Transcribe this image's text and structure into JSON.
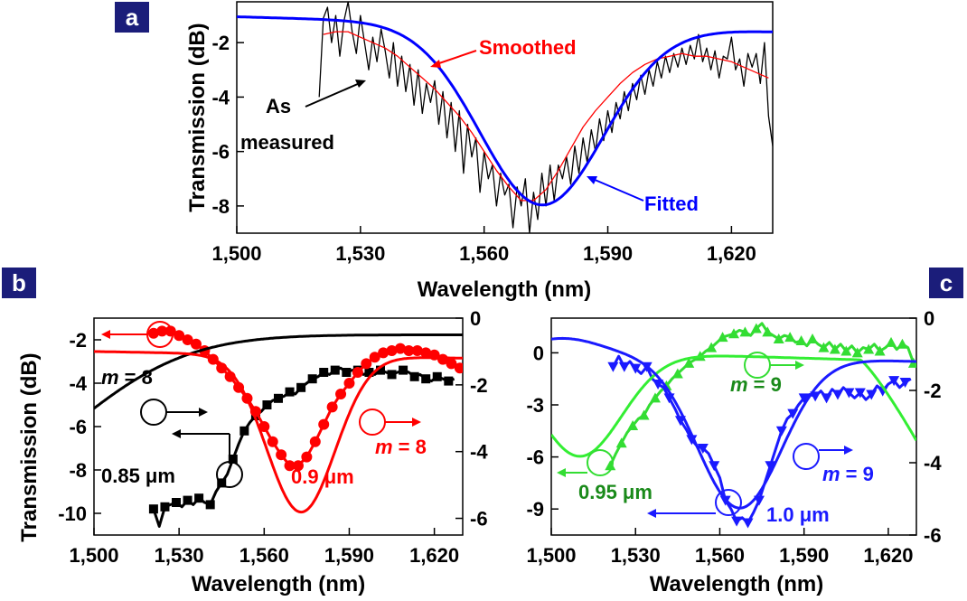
{
  "chart_data": [
    {
      "panel": "a",
      "type": "line",
      "xlabel": "Wavelength (nm)",
      "ylabel": "Transmission (dB)",
      "xlim": [
        1500,
        1630
      ],
      "ylim": [
        -9,
        -0.5
      ],
      "xticks": [
        "1,500",
        "1,530",
        "1,560",
        "1,590",
        "1,620"
      ],
      "yticks": [
        "-2",
        "-4",
        "-6",
        "-8"
      ],
      "annotations": [
        "Smoothed",
        "As measured",
        "Fitted"
      ],
      "series": [
        {
          "name": "As measured",
          "color": "#000000",
          "x": [
            1520,
            1521,
            1522,
            1523,
            1524,
            1525,
            1526,
            1527,
            1528,
            1529,
            1530,
            1531,
            1532,
            1533,
            1534,
            1535,
            1536,
            1537,
            1538,
            1539,
            1540,
            1541,
            1542,
            1543,
            1544,
            1545,
            1546,
            1547,
            1548,
            1549,
            1550,
            1551,
            1552,
            1553,
            1554,
            1555,
            1556,
            1557,
            1558,
            1559,
            1560,
            1561,
            1562,
            1563,
            1564,
            1565,
            1566,
            1567,
            1568,
            1569,
            1570,
            1571,
            1572,
            1573,
            1574,
            1575,
            1576,
            1577,
            1578,
            1579,
            1580,
            1581,
            1582,
            1583,
            1584,
            1585,
            1586,
            1587,
            1588,
            1589,
            1590,
            1591,
            1592,
            1593,
            1594,
            1595,
            1596,
            1597,
            1598,
            1599,
            1600,
            1601,
            1602,
            1603,
            1604,
            1605,
            1606,
            1607,
            1608,
            1609,
            1610,
            1611,
            1612,
            1613,
            1614,
            1615,
            1616,
            1617,
            1618,
            1619,
            1620,
            1621,
            1622,
            1623,
            1624,
            1625,
            1626,
            1627,
            1628,
            1629,
            1630
          ],
          "y": [
            -4.0,
            -1.1,
            -0.7,
            -2.0,
            -1.0,
            -2.5,
            -1.2,
            -0.5,
            -1.6,
            -2.4,
            -1.0,
            -2.0,
            -3.0,
            -1.8,
            -2.7,
            -1.5,
            -2.3,
            -3.3,
            -2.0,
            -3.6,
            -2.5,
            -3.8,
            -2.8,
            -4.3,
            -3.0,
            -4.6,
            -3.5,
            -4.2,
            -3.4,
            -5.0,
            -3.8,
            -5.5,
            -4.2,
            -6.0,
            -4.5,
            -6.8,
            -5.0,
            -6.2,
            -5.5,
            -7.5,
            -6.0,
            -7.0,
            -6.5,
            -8.0,
            -6.8,
            -7.6,
            -7.2,
            -8.8,
            -7.3,
            -8.0,
            -7.0,
            -9.0,
            -7.5,
            -8.5,
            -6.8,
            -8.0,
            -6.5,
            -7.8,
            -6.5,
            -7.0,
            -6.2,
            -7.2,
            -5.8,
            -6.8,
            -5.5,
            -6.4,
            -5.2,
            -6.0,
            -4.8,
            -5.6,
            -4.5,
            -5.3,
            -4.2,
            -4.8,
            -3.8,
            -4.5,
            -3.5,
            -4.1,
            -3.2,
            -3.9,
            -3.0,
            -3.6,
            -2.7,
            -3.3,
            -2.5,
            -3.1,
            -2.4,
            -2.9,
            -2.2,
            -2.8,
            -2.1,
            -2.6,
            -1.7,
            -2.7,
            -2.2,
            -3.0,
            -2.3,
            -3.3,
            -2.5,
            -2.6,
            -1.8,
            -3.0,
            -2.6,
            -3.6,
            -2.4,
            -2.9,
            -2.4,
            -3.5,
            -2.0,
            -4.7,
            -5.8
          ]
        },
        {
          "name": "Smoothed",
          "color": "#ff0000",
          "x": [
            1521,
            1524,
            1527,
            1530,
            1533,
            1536,
            1539,
            1542,
            1545,
            1548,
            1551,
            1554,
            1557,
            1560,
            1563,
            1566,
            1569,
            1572,
            1575,
            1578,
            1581,
            1584,
            1587,
            1590,
            1593,
            1596,
            1599,
            1602,
            1605,
            1608,
            1611,
            1614,
            1617,
            1620,
            1623,
            1626,
            1629
          ],
          "y": [
            -1.7,
            -1.6,
            -1.6,
            -1.8,
            -2.0,
            -2.2,
            -2.5,
            -2.9,
            -3.3,
            -3.7,
            -4.2,
            -4.7,
            -5.3,
            -6.0,
            -6.7,
            -7.3,
            -7.8,
            -7.8,
            -7.4,
            -6.7,
            -5.9,
            -5.1,
            -4.5,
            -4.0,
            -3.5,
            -3.1,
            -2.8,
            -2.6,
            -2.5,
            -2.4,
            -2.5,
            -2.5,
            -2.6,
            -2.7,
            -2.9,
            -3.1,
            -3.3
          ]
        },
        {
          "name": "Fitted",
          "color": "#0000ff",
          "func": {
            "baseline": -1.05,
            "depth": 6.6,
            "center": 1574,
            "width": 15,
            "tail": -0.55
          }
        }
      ]
    },
    {
      "panel": "b",
      "type": "line",
      "xlabel": "Wavelength (nm)",
      "ylabel": "Transmission (dB)",
      "xlim": [
        1500,
        1630
      ],
      "ylim": [
        -11,
        -1
      ],
      "y2lim": [
        -6.5,
        0
      ],
      "xticks": [
        "1,500",
        "1,530",
        "1,560",
        "1,590",
        "1,620"
      ],
      "yticks": [
        "-2",
        "-4",
        "-6",
        "-8",
        "-10"
      ],
      "y2ticks": [
        "0",
        "-2",
        "-4",
        "-6"
      ],
      "annotations": {
        "m_black": "m = 8",
        "m_red": "m = 8",
        "width_black": "0.85 μm",
        "width_red": "0.9 μm"
      },
      "series": [
        {
          "name": "0.85 μm measured",
          "color": "#000000",
          "marker": "square",
          "x": [
            1521,
            1523,
            1525,
            1527,
            1529,
            1531,
            1533,
            1535,
            1537,
            1539,
            1541,
            1543,
            1545,
            1547,
            1549,
            1551,
            1553,
            1555,
            1557,
            1559,
            1561,
            1563,
            1565,
            1567,
            1569,
            1571,
            1573,
            1575,
            1577,
            1579,
            1581,
            1583,
            1585,
            1587,
            1589,
            1591,
            1593,
            1595,
            1597,
            1599,
            1601,
            1603,
            1605,
            1607,
            1609,
            1611,
            1613,
            1615,
            1617,
            1619,
            1621,
            1623,
            1625,
            1627
          ],
          "y": [
            -9.8,
            -10.6,
            -9.7,
            -9.6,
            -9.5,
            -9.7,
            -9.4,
            -9.6,
            -9.3,
            -9.5,
            -9.6,
            -9.0,
            -8.6,
            -8.2,
            -7.5,
            -6.8,
            -6.2,
            -5.8,
            -5.5,
            -5.3,
            -5.0,
            -4.8,
            -4.7,
            -4.6,
            -4.4,
            -4.5,
            -4.2,
            -4.0,
            -3.8,
            -3.7,
            -3.5,
            -3.6,
            -3.4,
            -3.3,
            -3.5,
            -3.4,
            -3.4,
            -3.6,
            -3.5,
            -3.6,
            -3.4,
            -3.5,
            -3.6,
            -3.5,
            -3.4,
            -3.5,
            -3.7,
            -3.6,
            -3.8,
            -3.9,
            -3.7,
            -3.8,
            -3.9,
            -3.8
          ],
          "markers_every": 2
        },
        {
          "name": "0.9 μm measured",
          "color": "#ff0000",
          "marker": "circle",
          "x": [
            1521,
            1524,
            1527,
            1530,
            1533,
            1536,
            1539,
            1542,
            1545,
            1548,
            1551,
            1554,
            1557,
            1560,
            1563,
            1566,
            1569,
            1572,
            1575,
            1578,
            1581,
            1584,
            1587,
            1590,
            1593,
            1596,
            1599,
            1602,
            1605,
            1608,
            1611,
            1614,
            1617,
            1620,
            1623,
            1626,
            1629
          ],
          "y": [
            -1.7,
            -1.6,
            -1.6,
            -1.8,
            -2.0,
            -2.2,
            -2.5,
            -2.9,
            -3.3,
            -3.7,
            -4.2,
            -4.7,
            -5.3,
            -6.0,
            -6.7,
            -7.3,
            -7.8,
            -7.8,
            -7.4,
            -6.7,
            -5.9,
            -5.1,
            -4.5,
            -4.0,
            -3.5,
            -3.1,
            -2.8,
            -2.6,
            -2.5,
            -2.4,
            -2.5,
            -2.5,
            -2.6,
            -2.7,
            -2.9,
            -3.1,
            -3.3
          ]
        },
        {
          "name": "m = 8 (black) simulated",
          "color": "#000000",
          "axis": "right",
          "func": {
            "baseline": -0.5,
            "depth": 4.4,
            "center": 1453,
            "width": 40,
            "tail": 0
          }
        },
        {
          "name": "m = 8 (red) simulated",
          "color": "#ff0000",
          "axis": "right",
          "func": {
            "baseline": -1.0,
            "depth": 4.7,
            "center": 1573,
            "width": 12,
            "tail": -0.2
          }
        }
      ]
    },
    {
      "panel": "c",
      "type": "line",
      "xlabel": "Wavelength (nm)",
      "ylabel": "",
      "xlim": [
        1500,
        1630
      ],
      "ylim": [
        -10.5,
        2
      ],
      "y2lim": [
        -6,
        0
      ],
      "xticks": [
        "1,500",
        "1,530",
        "1,560",
        "1,590",
        "1,620"
      ],
      "yticks": [
        "0",
        "-3",
        "-6",
        "-9"
      ],
      "y2ticks": [
        "0",
        "-2",
        "-4",
        "-6"
      ],
      "annotations": {
        "m_green": "m = 9",
        "m_blue": "m = 9",
        "width_green": "0.95 μm",
        "width_blue": "1.0 μm"
      },
      "series": [
        {
          "name": "0.95 μm measured",
          "color": "#33dd33",
          "marker": "triangle-up",
          "x": [
            1521,
            1523,
            1525,
            1527,
            1529,
            1531,
            1533,
            1535,
            1537,
            1539,
            1541,
            1543,
            1545,
            1547,
            1549,
            1551,
            1553,
            1555,
            1557,
            1559,
            1561,
            1563,
            1565,
            1567,
            1569,
            1571,
            1573,
            1575,
            1577,
            1579,
            1581,
            1583,
            1585,
            1587,
            1589,
            1591,
            1593,
            1595,
            1597,
            1599,
            1601,
            1603,
            1605,
            1607,
            1609,
            1611,
            1613,
            1615,
            1617,
            1619,
            1621,
            1623,
            1625,
            1627,
            1629
          ],
          "y": [
            -6.5,
            -5.8,
            -5.2,
            -4.6,
            -4.2,
            -3.8,
            -3.6,
            -3.0,
            -2.6,
            -2.2,
            -1.9,
            -1.5,
            -1.2,
            -0.9,
            -0.6,
            -0.4,
            -0.2,
            0.1,
            0.3,
            0.6,
            0.9,
            1.0,
            1.1,
            1.3,
            1.2,
            1.0,
            1.4,
            1.7,
            1.2,
            1.0,
            0.8,
            1.0,
            0.9,
            0.6,
            0.7,
            0.4,
            0.8,
            0.5,
            0.3,
            0.6,
            0.2,
            0.5,
            0.1,
            0.4,
            0.0,
            0.3,
            0.2,
            0.5,
            0.1,
            0.3,
            0.6,
            0.2,
            0.5,
            0.3,
            -0.6
          ],
          "markers_every": 2
        },
        {
          "name": "1.0 μm measured",
          "color": "#1a1aff",
          "marker": "triangle-down",
          "x": [
            1522,
            1524,
            1526,
            1528,
            1530,
            1532,
            1534,
            1536,
            1538,
            1540,
            1542,
            1544,
            1546,
            1548,
            1550,
            1552,
            1554,
            1556,
            1558,
            1560,
            1562,
            1564,
            1566,
            1568,
            1570,
            1572,
            1574,
            1576,
            1578,
            1580,
            1582,
            1584,
            1586,
            1588,
            1590,
            1592,
            1594,
            1596,
            1598,
            1600,
            1602,
            1604,
            1606,
            1608,
            1610,
            1612,
            1614,
            1616,
            1618,
            1620,
            1622,
            1624,
            1626,
            1628
          ],
          "y": [
            -0.8,
            -0.2,
            -0.8,
            -0.5,
            -0.9,
            -1.2,
            -0.8,
            -1.5,
            -1.8,
            -2.0,
            -2.6,
            -3.2,
            -3.9,
            -4.4,
            -5.0,
            -5.4,
            -5.5,
            -5.8,
            -6.5,
            -7.2,
            -8.5,
            -9.0,
            -9.7,
            -9.5,
            -9.8,
            -9.2,
            -8.5,
            -7.5,
            -6.5,
            -5.5,
            -4.5,
            -3.8,
            -3.5,
            -3.0,
            -2.6,
            -2.4,
            -2.5,
            -2.2,
            -2.6,
            -2.1,
            -2.4,
            -2.0,
            -2.3,
            -2.6,
            -2.3,
            -2.7,
            -2.4,
            -1.9,
            -2.2,
            -1.8,
            -1.6,
            -2.0,
            -1.7,
            -1.5
          ],
          "markers_every": 2
        },
        {
          "name": "m = 9 (green) simulated",
          "color": "#33ee33",
          "axis": "right",
          "func": {
            "baseline": -0.9,
            "depth": 2.9,
            "center": 1510,
            "width": 15,
            "tail": -0.3,
            "decay_after": 1610,
            "decay_rate": 0.06
          }
        },
        {
          "name": "m = 9 (blue) simulated",
          "color": "#1a1aff",
          "axis": "right",
          "func": {
            "baseline": -0.9,
            "depth": 4.2,
            "center": 1567,
            "width": 15,
            "tail": -0.3,
            "pre_hump": true
          }
        }
      ]
    }
  ],
  "panel_labels": {
    "a": "a",
    "b": "b",
    "c": "c"
  },
  "colors": {
    "panel_label_bg": "#1b1d7a",
    "red": "#ff0000",
    "blue": "#0000ff",
    "green": "#33dd33",
    "dark_green": "#1a8a1a",
    "black": "#000000"
  }
}
